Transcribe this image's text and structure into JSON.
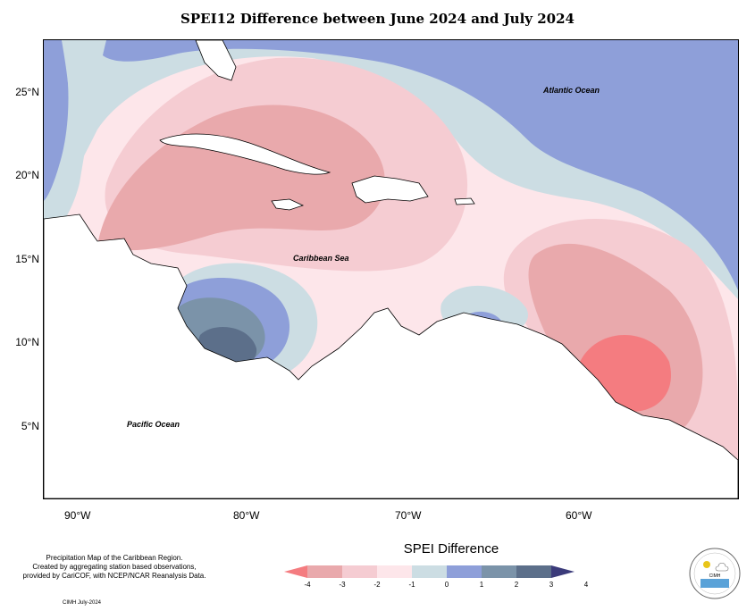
{
  "title": "SPEI12 Difference between June 2024 and July 2024",
  "map": {
    "lat_labels": [
      "25°N",
      "20°N",
      "15°N",
      "10°N",
      "5°N"
    ],
    "lon_labels": [
      "90°W",
      "80°W",
      "70°W",
      "60°W"
    ],
    "ocean_labels": {
      "atlantic": "Atlantic Ocean",
      "caribbean": "Caribbean Sea",
      "pacific": "Pacific Ocean"
    }
  },
  "credit": {
    "line1": "Precipitation Map of the Caribbean Region.",
    "line2": "Created by aggregating station based observations,",
    "line3": "provided by CariCOF, with NCEP/NCAR Reanalysis Data.",
    "line4": "CIMH July-2024"
  },
  "legend": {
    "title": "SPEI Difference",
    "labels": [
      "-4",
      "-3",
      "-2",
      "-1",
      "0",
      "1",
      "2",
      "3",
      "4"
    ],
    "colors": [
      "#f47c80",
      "#e9a9ac",
      "#f5ccd2",
      "#fde6ea",
      "#ccdde3",
      "#8e9fd9",
      "#7b93a9",
      "#5c6f8a",
      "#3b3b7a"
    ]
  },
  "logo": {
    "text": "CIMH"
  }
}
